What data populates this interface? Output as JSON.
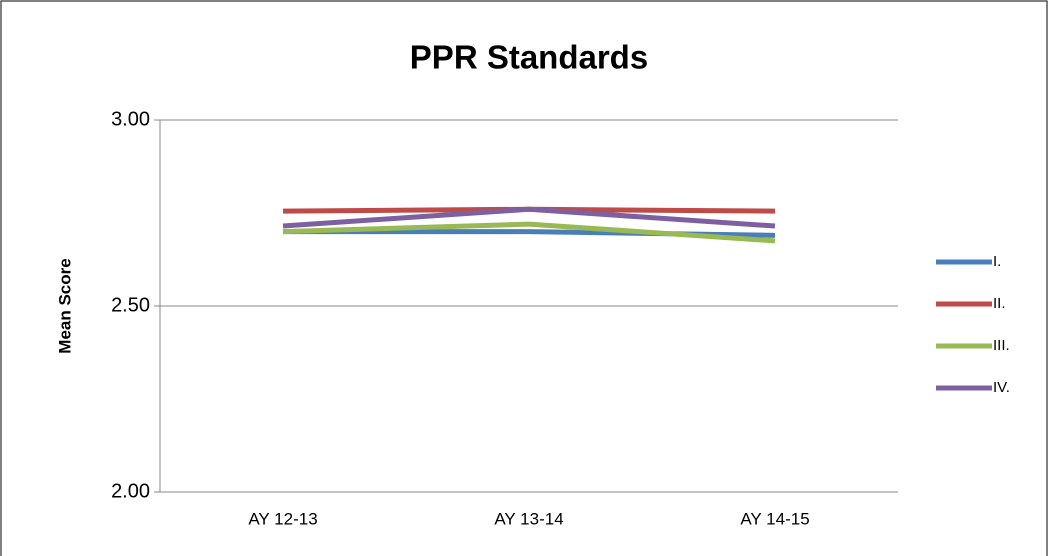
{
  "chart_data": {
    "type": "line",
    "title": "PPR Standards",
    "y_label": "Mean Score",
    "categories": [
      "AY 12-13",
      "AY 13-14",
      "AY 14-15"
    ],
    "series": [
      {
        "name": "I.",
        "color": "#4a7ebb",
        "values": [
          2.7,
          2.7,
          2.69
        ]
      },
      {
        "name": "II.",
        "color": "#be4b48",
        "values": [
          2.755,
          2.76,
          2.755
        ]
      },
      {
        "name": "III.",
        "color": "#98b954",
        "values": [
          2.7,
          2.72,
          2.675
        ]
      },
      {
        "name": "IV.",
        "color": "#7d60a0",
        "values": [
          2.715,
          2.76,
          2.715
        ]
      }
    ],
    "ylim": [
      2.0,
      3.0
    ],
    "yticks": [
      {
        "value": 2.0,
        "label": "2.00"
      },
      {
        "value": 2.5,
        "label": "2.50"
      },
      {
        "value": 3.0,
        "label": "3.00"
      }
    ],
    "grid": true,
    "legend": "right"
  }
}
